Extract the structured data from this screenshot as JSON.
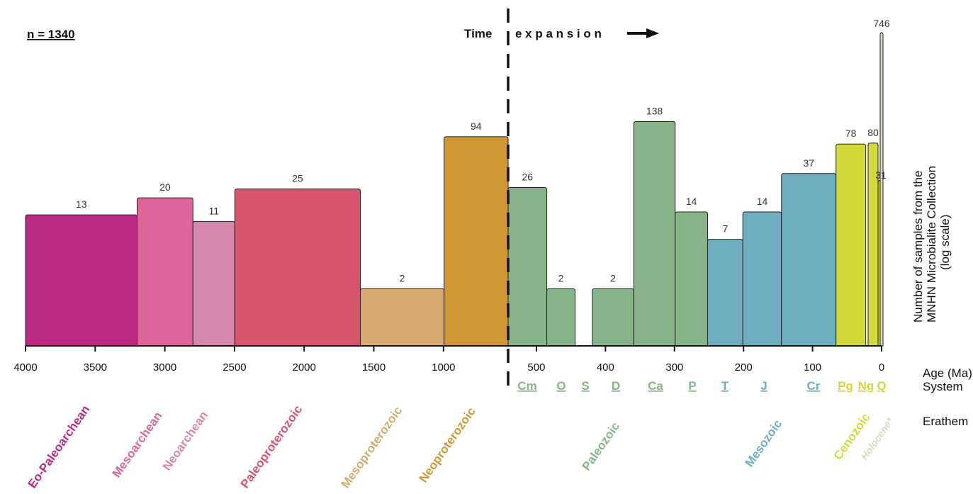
{
  "chart_data": {
    "type": "bar",
    "sample_count_label": "n = 1340",
    "annotation": {
      "word1": "Time",
      "word2": "e x p a n s i o n"
    },
    "ylabel": [
      "Number of samples from the",
      "MNHN Microbialite Collection",
      "(log scale)"
    ],
    "yscale": "log",
    "xlabel": "Age (Ma)",
    "system_row_label": "System",
    "erathem_row_label": "Erathem",
    "xticks_left": [
      "4000",
      "3500",
      "3000",
      "2500",
      "2000",
      "1500",
      "1000"
    ],
    "xticks_right": [
      "500",
      "400",
      "300",
      "200",
      "100",
      "0"
    ],
    "bars": [
      {
        "name": "Eo-Paleoarchean",
        "start": 4000,
        "end": 3200,
        "value": 13,
        "color": "#bd2a83"
      },
      {
        "name": "Mesoarchean",
        "start": 3200,
        "end": 2800,
        "value": 20,
        "color": "#dd6599"
      },
      {
        "name": "Neoarchean",
        "start": 2800,
        "end": 2500,
        "value": 11,
        "color": "#d68aab"
      },
      {
        "name": "Paleoproterozoic",
        "start": 2500,
        "end": 1600,
        "value": 25,
        "color": "#d6546d"
      },
      {
        "name": "Mesoproterozoic",
        "start": 1600,
        "end": 1000,
        "value": 2,
        "color": "#d5ab71"
      },
      {
        "name": "Neoproterozoic",
        "start": 1000,
        "end": 541,
        "value": 94,
        "color": "#d19735"
      },
      {
        "name": "Cm",
        "start": 541,
        "end": 485,
        "value": 26,
        "color": "#88b48a"
      },
      {
        "name": "O",
        "start": 485,
        "end": 444,
        "value": 2,
        "color": "#88b48a"
      },
      {
        "name": "D",
        "start": 419,
        "end": 359,
        "value": 2,
        "color": "#88b48a"
      },
      {
        "name": "Ca",
        "start": 359,
        "end": 299,
        "value": 138,
        "color": "#88b48a"
      },
      {
        "name": "P",
        "start": 299,
        "end": 252,
        "value": 14,
        "color": "#88b48a"
      },
      {
        "name": "T",
        "start": 252,
        "end": 201,
        "value": 7,
        "color": "#6eaebe"
      },
      {
        "name": "J",
        "start": 201,
        "end": 145,
        "value": 14,
        "color": "#6eaebe"
      },
      {
        "name": "Cr",
        "start": 145,
        "end": 66,
        "value": 37,
        "color": "#6eaebe"
      },
      {
        "name": "Pg",
        "start": 66,
        "end": 23,
        "value": 78,
        "color": "#d3d93a"
      },
      {
        "name": "Ng",
        "start": 23,
        "end": 2.6,
        "value": 80,
        "color": "#d3d93a"
      },
      {
        "name": "Q",
        "start": 2.6,
        "end": 0.0117,
        "value": 31,
        "color": "#d3d93a"
      },
      {
        "name": "Holocene*",
        "start": 0.0117,
        "end": 0,
        "value": 746,
        "color": "#ddd6c0"
      }
    ],
    "systems": [
      {
        "label": "Cm",
        "color": "#88b48a"
      },
      {
        "label": "O",
        "color": "#88b48a"
      },
      {
        "label": "S",
        "color": "#88b48a"
      },
      {
        "label": "D",
        "color": "#88b48a"
      },
      {
        "label": "Ca",
        "color": "#88b48a"
      },
      {
        "label": "P",
        "color": "#88b48a"
      },
      {
        "label": "T",
        "color": "#6eaebe"
      },
      {
        "label": "J",
        "color": "#6eaebe"
      },
      {
        "label": "Cr",
        "color": "#6eaebe"
      },
      {
        "label": "Pg",
        "color": "#d3d93a"
      },
      {
        "label": "Ng",
        "color": "#d3d93a"
      },
      {
        "label": "Q",
        "color": "#d3d93a"
      }
    ],
    "erathems": [
      {
        "label": "Eo-Paleoarchean",
        "color": "#bd2a83"
      },
      {
        "label": "Mesoarchean",
        "color": "#dd6599"
      },
      {
        "label": "Neoarchean",
        "color": "#d68aab"
      },
      {
        "label": "Paleoproterozoic",
        "color": "#d6546d"
      },
      {
        "label": "Mesoproterozoic",
        "color": "#d5ab71"
      },
      {
        "label": "Neoproterozoic",
        "color": "#d19735"
      },
      {
        "label": "Paleozoic",
        "color": "#88b48a"
      },
      {
        "label": "Mesozoic",
        "color": "#6eaebe"
      },
      {
        "label": "Cenozoic",
        "color": "#d3d93a"
      },
      {
        "label": "Holocene*",
        "color": "#ddd6c0"
      }
    ]
  }
}
